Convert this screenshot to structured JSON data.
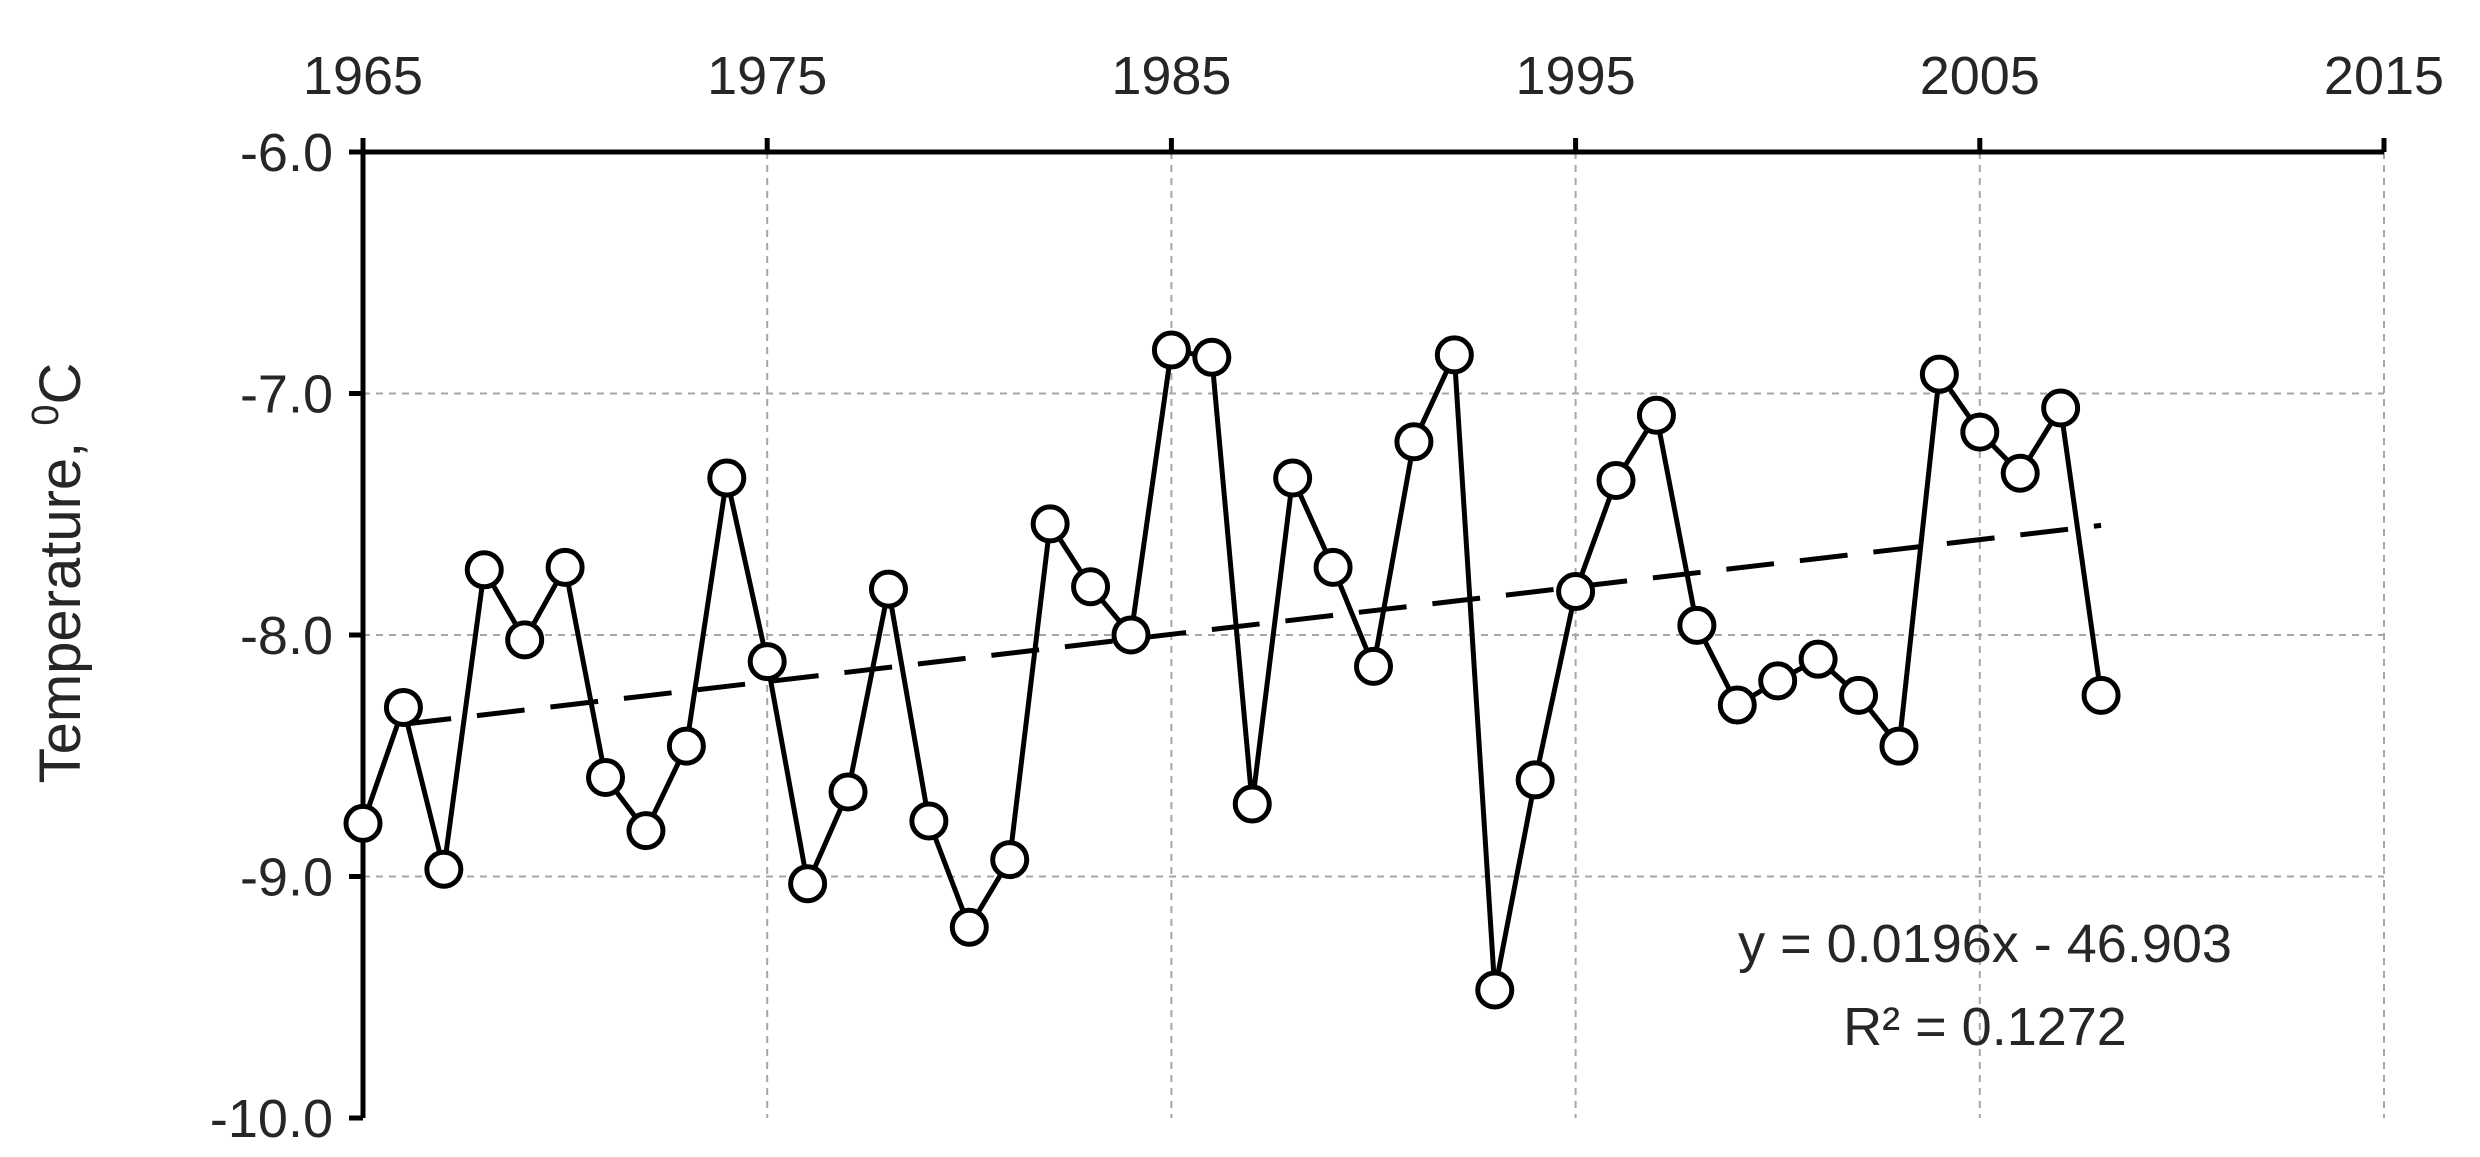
{
  "chart_data": {
    "type": "scatter",
    "title": "",
    "xlabel": "",
    "ylabel": "Temperature, ",
    "ylabel_sup": "0",
    "ylabel_unit": "C",
    "xlim": [
      1965,
      2015
    ],
    "ylim": [
      -10.0,
      -6.0
    ],
    "x_ticks": [
      1965,
      1975,
      1985,
      1995,
      2005,
      2015
    ],
    "x_tick_labels": [
      "1965",
      "1975",
      "1985",
      "1995",
      "2005",
      "2015"
    ],
    "y_ticks": [
      -10.0,
      -9.0,
      -8.0,
      -7.0,
      -6.0
    ],
    "y_tick_labels": [
      "-10.0",
      "-9.0",
      "-8.0",
      "-7.0",
      "-6.0"
    ],
    "x_axis_position": "top",
    "grid": true,
    "legend": "none",
    "series": [
      {
        "x": [
          1965,
          1966,
          1967,
          1968,
          1969,
          1970,
          1971,
          1972,
          1973,
          1974,
          1975,
          1976,
          1977,
          1978,
          1979,
          1980,
          1981,
          1982,
          1983,
          1984,
          1985,
          1986,
          1987,
          1988,
          1989,
          1990,
          1991,
          1992,
          1993,
          1994,
          1995,
          1996,
          1997,
          1998,
          1999,
          2000,
          2001,
          2002,
          2003,
          2004,
          2005,
          2006,
          2007,
          2008
        ],
        "values": [
          -8.78,
          -8.3,
          -8.97,
          -7.73,
          -8.02,
          -7.72,
          -8.59,
          -8.81,
          -8.46,
          -7.35,
          -8.11,
          -9.03,
          -8.65,
          -7.81,
          -8.77,
          -9.21,
          -8.93,
          -7.54,
          -7.8,
          -8.0,
          -6.82,
          -6.85,
          -8.7,
          -7.35,
          -7.72,
          -8.13,
          -7.2,
          -6.84,
          -9.47,
          -8.6,
          -7.82,
          -7.36,
          -7.09,
          -7.96,
          -8.29,
          -8.19,
          -8.1,
          -8.25,
          -8.46,
          -6.92,
          -7.16,
          -7.33,
          -7.06,
          -8.25
        ]
      }
    ],
    "trendline": {
      "type": "linear",
      "slope": 0.0196,
      "intercept": -46.903,
      "x_range": [
        1966,
        2008
      ],
      "equation_label": "y = 0.0196x - 46.903",
      "r2_label": "R² = 0.1272"
    },
    "colors": {
      "line": "#000000",
      "marker_fill": "#ffffff",
      "grid": "#a6a6a6",
      "text": "#262626"
    }
  }
}
